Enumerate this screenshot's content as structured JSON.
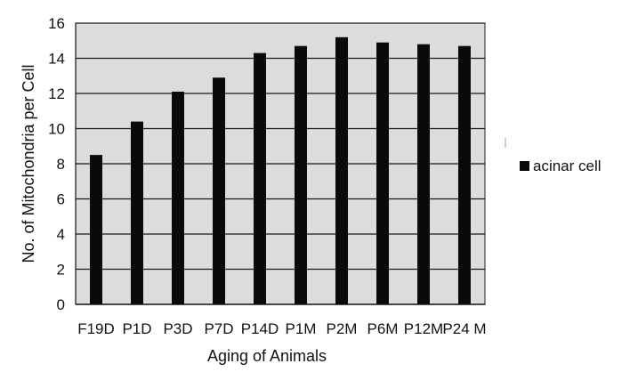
{
  "chart_data": {
    "type": "bar",
    "categories": [
      "F19D",
      "P1D",
      "P3D",
      "P7D",
      "P14D",
      "P1M",
      "P2M",
      "P6M",
      "P12M",
      "P24 M"
    ],
    "series": [
      {
        "name": "acinar cell",
        "values": [
          8.5,
          10.4,
          12.1,
          12.9,
          14.3,
          14.7,
          15.2,
          14.9,
          14.8,
          14.7
        ]
      }
    ],
    "xlabel": "Aging of Animals",
    "ylabel": "No. of Mitochondria per Cell",
    "ylim": [
      0,
      16
    ],
    "yticks": [
      0,
      2,
      4,
      6,
      8,
      10,
      12,
      14,
      16
    ],
    "grid": true,
    "legend_position": "right",
    "colors": {
      "plot_background": "#dcdcdc",
      "bar": "#0a0a0a",
      "grid": "#1a1a1a"
    }
  }
}
